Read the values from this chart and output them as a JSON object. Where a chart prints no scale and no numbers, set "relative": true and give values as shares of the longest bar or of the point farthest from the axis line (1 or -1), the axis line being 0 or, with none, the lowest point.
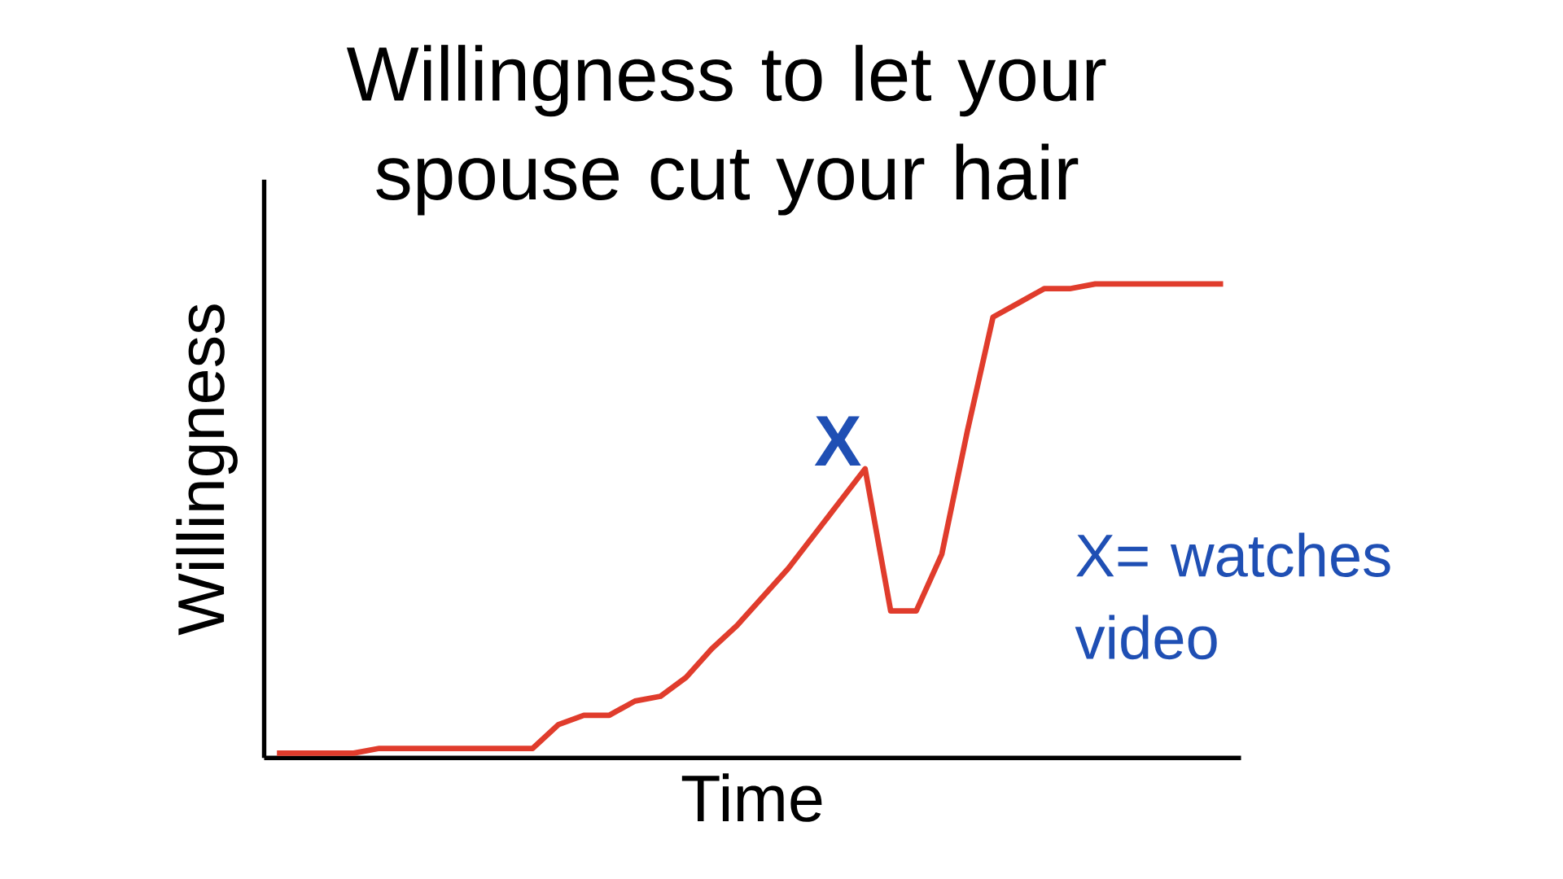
{
  "chart_data": {
    "type": "line",
    "title": "Willingness to let your spouse cut your hair",
    "xlabel": "Time",
    "ylabel": "Willingness",
    "relative": true,
    "categories": [
      null,
      null,
      null,
      null,
      null,
      null,
      null,
      null,
      null,
      null,
      null,
      null,
      null,
      null,
      null,
      null,
      null,
      null,
      null,
      null,
      null,
      null,
      null,
      null,
      null,
      null,
      null,
      null,
      null,
      null,
      null,
      null,
      null,
      null,
      null,
      null,
      null,
      null
    ],
    "values": [
      0.01,
      0.01,
      0.01,
      0.01,
      0.02,
      0.02,
      0.02,
      0.02,
      0.02,
      0.02,
      0.02,
      0.07,
      0.09,
      0.09,
      0.12,
      0.13,
      0.17,
      0.23,
      0.28,
      0.34,
      0.4,
      0.47,
      0.54,
      0.61,
      0.31,
      0.31,
      0.43,
      0.69,
      0.93,
      0.96,
      0.99,
      0.99,
      1.0,
      1.0,
      1.0,
      1.0,
      1.0,
      1.0
    ],
    "color": "#e03c2c",
    "annotations": [
      "X",
      "X= watches video"
    ]
  }
}
